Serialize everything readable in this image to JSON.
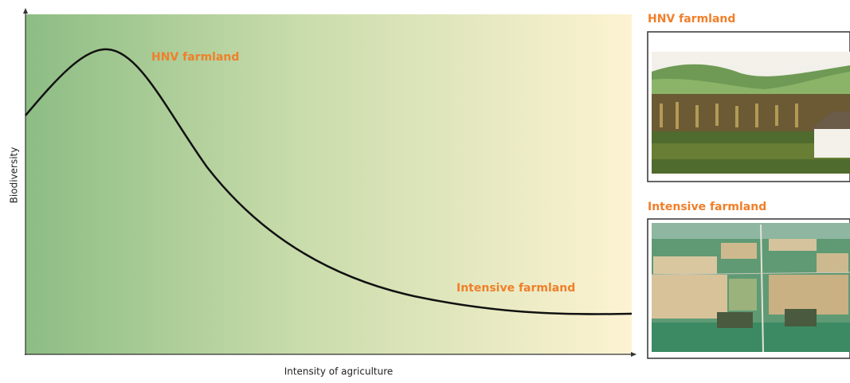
{
  "diagram": {
    "y_axis_label": "Biodiversity",
    "x_axis_label": "Intensity of agriculture",
    "annotations": [
      "HNV farmland",
      "Intensive farmland"
    ]
  },
  "photos": [
    {
      "caption": "HNV farmland"
    },
    {
      "caption": "Intensive farmland"
    }
  ]
}
